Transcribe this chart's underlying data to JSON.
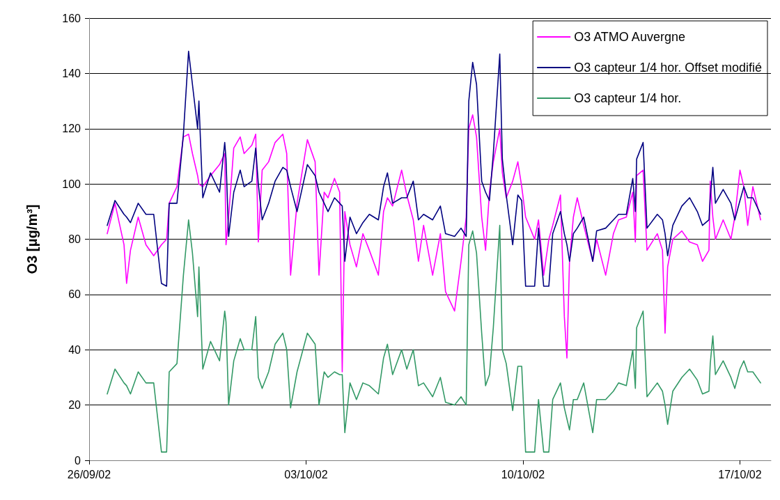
{
  "chart_data": {
    "type": "line",
    "ylabel": "O3 [μg/m³]",
    "x": [
      "--09-26T14:00",
      "--09-26T20:00",
      "--09-27T03:00",
      "--09-27T05:00",
      "--09-27T08:00",
      "--09-27T14:00",
      "--09-27T20:00",
      "--09-28T02:00",
      "--09-28T08:00",
      "--09-28T12:00",
      "--09-28T14:00",
      "--09-28T20:00",
      "--09-29T01:00",
      "--09-29T05:00",
      "--09-29T08:00",
      "--09-29T12:00",
      "--09-29T13:00",
      "--09-29T16:00",
      "--09-29T22:00",
      "--09-30T05:00",
      "--09-30T09:00",
      "--09-30T10:00",
      "--09-30T12:00",
      "--09-30T16:00",
      "--09-30T21:00",
      "--10-01T00:00",
      "--10-01T06:00",
      "--10-01T09:00",
      "--10-01T11:00",
      "--10-01T14:00",
      "--10-01T19:00",
      "--10-02T00:00",
      "--10-02T06:00",
      "--10-02T09:00",
      "--10-02T12:00",
      "--10-02T17:00",
      "--10-03T01:00",
      "--10-03T07:00",
      "--10-03T10:00",
      "--10-03T14:00",
      "--10-03T17:00",
      "--10-03T22:00",
      "--10-04T02:00",
      "--10-04T04:00",
      "--10-04T06:00",
      "--10-04T10:00",
      "--10-04T15:00",
      "--10-04T20:00",
      "--10-05T01:00",
      "--10-05T08:00",
      "--10-05T12:00",
      "--10-05T15:00",
      "--10-05T19:00",
      "--10-06T02:00",
      "--10-06T06:00",
      "--10-06T11:00",
      "--10-06T15:00",
      "--10-06T19:00",
      "--10-07T02:00",
      "--10-07T08:00",
      "--10-07T12:00",
      "--10-07T19:00",
      "--10-08T00:00",
      "--10-08T04:00",
      "--10-08T06:00",
      "--10-08T09:00",
      "--10-08T12:00",
      "--10-08T16:00",
      "--10-08T19:00",
      "--10-08T22:00",
      "--10-09T01:00",
      "--10-09T06:00",
      "--10-09T08:00",
      "--10-09T11:00",
      "--10-09T16:00",
      "--10-09T20:00",
      "--10-09T23:00",
      "--10-10T02:00",
      "--10-10T09:00",
      "--10-10T12:00",
      "--10-10T16:00",
      "--10-10T20:00",
      "--10-10T23:00",
      "--10-11T05:00",
      "--10-11T08:00",
      "--10-11T10:00",
      "--10-11T12:00",
      "--10-11T15:00",
      "--10-11T18:00",
      "--10-11T23:00",
      "--10-12T06:00",
      "--10-12T09:00",
      "--10-12T16:00",
      "--10-12T22:00",
      "--10-13T02:00",
      "--10-13T08:00",
      "--10-13T13:00",
      "--10-13T15:00",
      "--10-13T16:00",
      "--10-13T21:00",
      "--10-14T00:00",
      "--10-14T08:00",
      "--10-14T12:00",
      "--10-14T14:00",
      "--10-14T16:00",
      "--10-14T20:00",
      "--10-15T03:00",
      "--10-15T09:00",
      "--10-15T15:00",
      "--10-15T19:00",
      "--10-16T00:00",
      "--10-16T01:00",
      "--10-16T03:00",
      "--10-16T05:00",
      "--10-16T11:00",
      "--10-16T17:00",
      "--10-16T20:00",
      "--10-17T00:00",
      "--10-17T03:00",
      "--10-17T06:00",
      "--10-17T10:00",
      "--10-17T16:00"
    ],
    "series": [
      {
        "name": "O3 ATMO Auvergne",
        "color": "#ff00ff",
        "values": [
          82,
          93,
          78,
          64,
          76,
          88,
          78,
          74,
          78,
          80,
          93,
          99,
          117,
          118,
          111,
          103,
          100,
          99,
          103,
          107,
          111,
          78,
          88,
          113,
          117,
          111,
          114,
          118,
          79,
          105,
          108,
          115,
          118,
          111,
          67,
          93,
          116,
          108,
          67,
          97,
          95,
          102,
          97,
          32,
          90,
          78,
          70,
          82,
          76,
          67,
          90,
          95,
          92,
          105,
          96,
          87,
          72,
          85,
          67,
          82,
          61,
          54,
          72,
          88,
          120,
          125,
          117,
          88,
          76,
          97,
          108,
          120,
          104,
          95,
          101,
          108,
          99,
          88,
          80,
          87,
          67,
          80,
          85,
          96,
          52,
          37,
          72,
          88,
          95,
          85,
          72,
          80,
          67,
          82,
          87,
          88,
          97,
          79,
          103,
          105,
          76,
          82,
          76,
          46,
          70,
          80,
          83,
          79,
          78,
          72,
          76,
          101,
          88,
          80,
          87,
          80,
          88,
          105,
          99,
          85,
          99,
          87
        ]
      },
      {
        "name": "O3 capteur 1/4 hor. Offset modifié",
        "color": "#000080",
        "values": [
          85,
          94,
          89,
          88,
          86,
          93,
          89,
          89,
          64,
          63,
          93,
          93,
          118,
          148,
          136,
          120,
          130,
          95,
          104,
          97,
          115,
          109,
          81,
          97,
          105,
          99,
          101,
          113,
          100,
          87,
          93,
          101,
          106,
          105,
          99,
          90,
          107,
          103,
          97,
          93,
          90,
          95,
          93,
          92,
          72,
          88,
          82,
          86,
          89,
          87,
          99,
          104,
          93,
          95,
          95,
          101,
          87,
          89,
          87,
          92,
          82,
          81,
          84,
          81,
          130,
          144,
          136,
          101,
          97,
          94,
          111,
          147,
          109,
          96,
          78,
          96,
          94,
          63,
          63,
          84,
          63,
          63,
          82,
          90,
          82,
          78,
          72,
          82,
          84,
          88,
          72,
          83,
          84,
          87,
          89,
          89,
          102,
          90,
          109,
          115,
          84,
          89,
          87,
          82,
          74,
          85,
          92,
          95,
          90,
          85,
          87,
          95,
          106,
          93,
          98,
          93,
          87,
          94,
          99,
          95,
          95,
          89
        ]
      },
      {
        "name": "O3 capteur 1/4 hor.",
        "color": "#339966",
        "values": [
          24,
          33,
          28,
          27,
          24,
          32,
          28,
          28,
          3,
          3,
          32,
          35,
          67,
          87,
          75,
          52,
          70,
          33,
          43,
          36,
          54,
          50,
          20,
          36,
          44,
          40,
          40,
          52,
          30,
          26,
          32,
          42,
          46,
          40,
          19,
          32,
          46,
          42,
          20,
          32,
          30,
          32,
          31,
          31,
          10,
          28,
          22,
          28,
          27,
          24,
          37,
          42,
          31,
          40,
          33,
          40,
          27,
          28,
          23,
          30,
          21,
          20,
          23,
          20,
          78,
          83,
          75,
          46,
          27,
          31,
          48,
          85,
          40,
          35,
          18,
          34,
          34,
          3,
          3,
          22,
          3,
          3,
          22,
          28,
          19,
          15,
          11,
          22,
          22,
          28,
          10,
          22,
          22,
          25,
          28,
          27,
          40,
          26,
          48,
          54,
          23,
          28,
          25,
          20,
          13,
          25,
          30,
          33,
          29,
          24,
          25,
          35,
          45,
          31,
          36,
          30,
          26,
          33,
          36,
          32,
          32,
          28
        ]
      }
    ],
    "xlim": [
      "--09-26",
      "--10-18"
    ],
    "xticks": [
      {
        "value": "--09-26",
        "label": "26/09/02"
      },
      {
        "value": "--10-03",
        "label": "03/10/02"
      },
      {
        "value": "--10-10",
        "label": "10/10/02"
      },
      {
        "value": "--10-17",
        "label": "17/10/02"
      }
    ],
    "ylim": [
      0,
      160
    ],
    "yticks": [
      0,
      20,
      40,
      60,
      80,
      100,
      120,
      140,
      160
    ],
    "grid": "y",
    "legend": "top right",
    "marker": "none",
    "line_style": "solid"
  }
}
